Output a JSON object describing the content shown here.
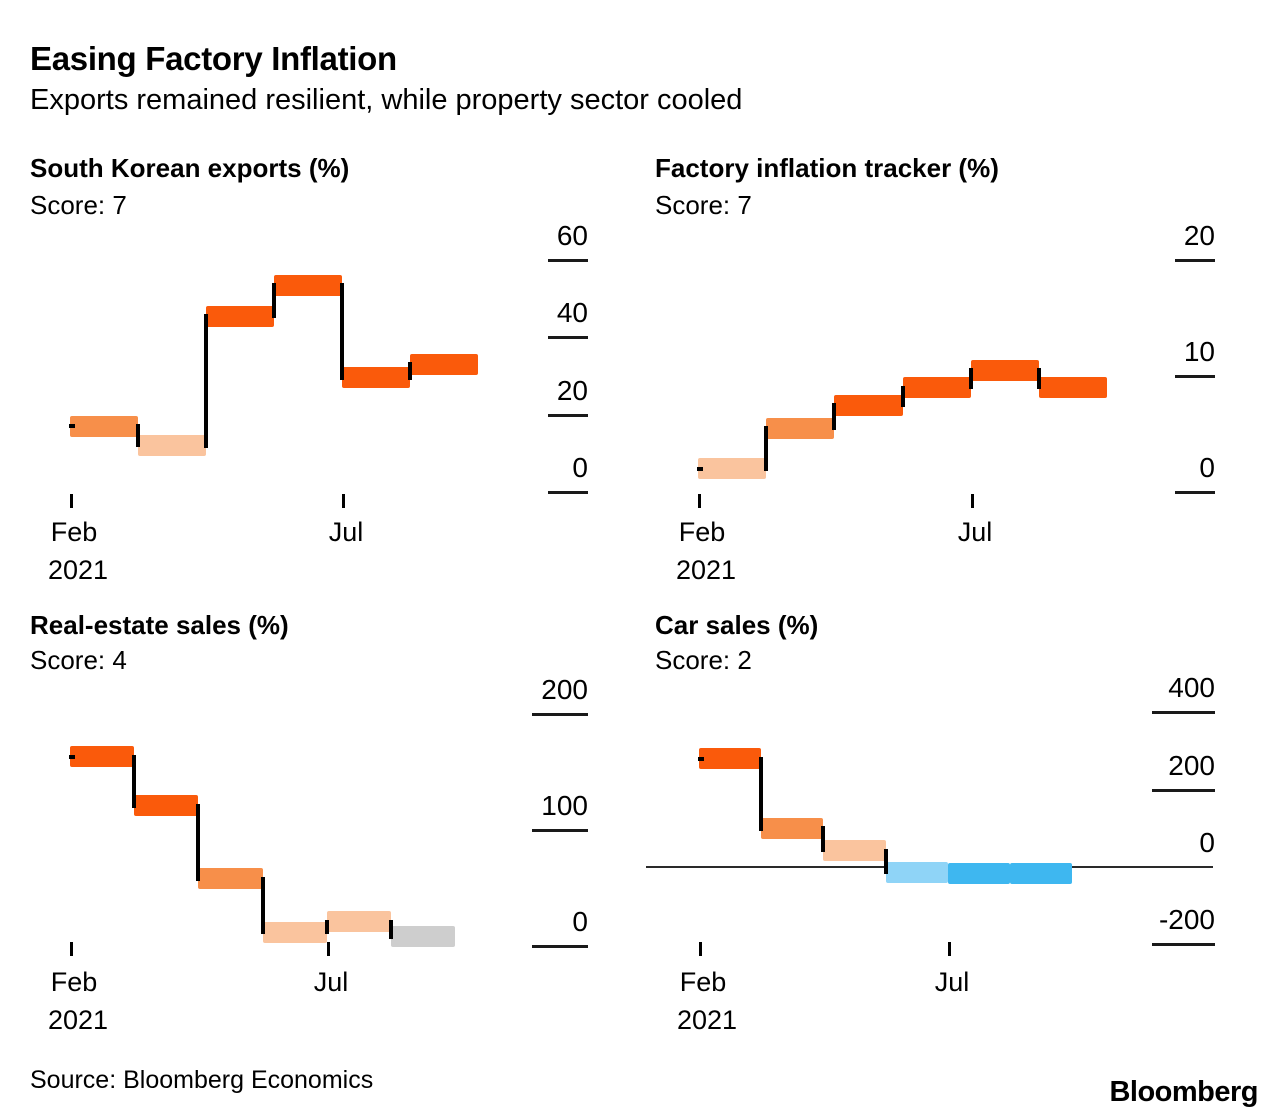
{
  "header": {
    "title": "Easing Factory Inflation",
    "subtitle": "Exports remained resilient, while property sector cooled"
  },
  "footer": {
    "source": "Source: Bloomberg Economics",
    "logo": "Bloomberg"
  },
  "colors": {
    "strong_orange": "#fa5a0b",
    "medium_orange": "#f78f4a",
    "peach": "#fac49e",
    "light_blue": "#8fd4f7",
    "blue": "#3eb7f0",
    "gray": "#cecece",
    "axis_dash": "#1a1a1a",
    "zero_line": "#2a2a2a",
    "connector": "#000000"
  },
  "chart_data": [
    {
      "type": "bar",
      "subtype": "step-level-bars",
      "title": "South Korean exports (%)",
      "score_label": "Score: 7",
      "values": [
        17,
        12,
        45.5,
        53.5,
        29.5,
        33
      ],
      "bar_colors": [
        "medium_orange",
        "peach",
        "strong_orange",
        "strong_orange",
        "strong_orange",
        "strong_orange"
      ],
      "yticks": [
        60,
        40,
        20,
        0
      ],
      "ylim": [
        0,
        60
      ],
      "x_ticks": [
        {
          "label": "Feb",
          "year": "2021",
          "slot": 0
        },
        {
          "label": "Jul",
          "slot": 4
        }
      ],
      "legend": "none",
      "grid": "right-axis-dashes"
    },
    {
      "type": "bar",
      "subtype": "step-level-bars",
      "title": "Factory inflation tracker (%)",
      "score_label": "Score: 7",
      "values": [
        2,
        5.5,
        7.5,
        9,
        10.5,
        9
      ],
      "bar_colors": [
        "peach",
        "medium_orange",
        "strong_orange",
        "strong_orange",
        "strong_orange",
        "strong_orange"
      ],
      "yticks": [
        20,
        10,
        0
      ],
      "ylim": [
        0,
        20
      ],
      "x_ticks": [
        {
          "label": "Feb",
          "year": "2021",
          "slot": 0
        },
        {
          "label": "Jul",
          "slot": 4
        }
      ],
      "legend": "none",
      "grid": "right-axis-dashes"
    },
    {
      "type": "bar",
      "subtype": "step-level-bars",
      "title": "Real-estate sales (%)",
      "score_label": "Score: 4",
      "values": [
        163,
        121,
        58,
        12,
        21,
        8
      ],
      "bar_colors": [
        "strong_orange",
        "strong_orange",
        "medium_orange",
        "peach",
        "peach",
        "gray"
      ],
      "yticks": [
        200,
        100,
        0
      ],
      "ylim": [
        0,
        200
      ],
      "x_ticks": [
        {
          "label": "Feb",
          "year": "2021",
          "slot": 0
        },
        {
          "label": "Jul",
          "slot": 4
        }
      ],
      "legend": "none",
      "grid": "right-axis-dashes"
    },
    {
      "type": "bar",
      "subtype": "step-level-bars",
      "title": "Car sales (%)",
      "score_label": "Score: 2",
      "values": [
        280,
        100,
        42,
        -13,
        -17,
        -17
      ],
      "bar_colors": [
        "strong_orange",
        "medium_orange",
        "peach",
        "light_blue",
        "blue",
        "blue"
      ],
      "yticks": [
        400,
        200,
        0,
        -200
      ],
      "ylim": [
        -200,
        400
      ],
      "x_ticks": [
        {
          "label": "Feb",
          "year": "2021",
          "slot": 0
        },
        {
          "label": "Jul",
          "slot": 4
        }
      ],
      "legend": "none",
      "grid": "right-axis-dashes",
      "zero_axis_line": true
    }
  ]
}
